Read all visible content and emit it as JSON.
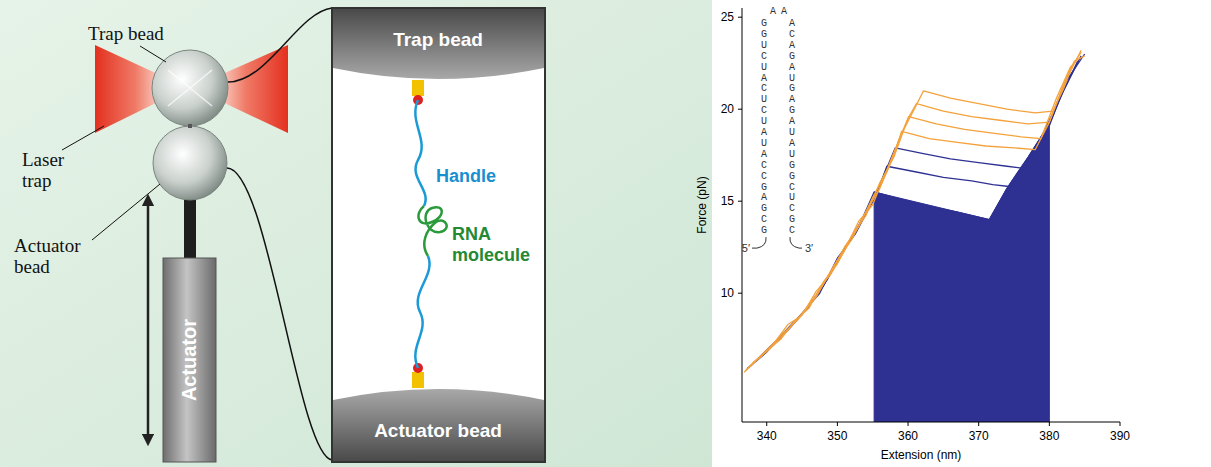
{
  "diagram": {
    "labels": {
      "trap_bead": "Trap bead",
      "laser_trap": "Laser trap",
      "actuator_bead": "Actuator bead",
      "actuator": "Actuator"
    },
    "inset": {
      "top_bead": "Trap bead",
      "bottom_bead": "Actuator bead",
      "handle": "Handle",
      "rna": "RNA molecule"
    }
  },
  "chart_data": {
    "type": "line",
    "x_label": "Extension (nm)",
    "y_label": "Force (pN)",
    "xlim": [
      336.5,
      390
    ],
    "xticks": [
      340,
      350,
      360,
      370,
      380,
      390
    ],
    "ylim": [
      3,
      25.5
    ],
    "yticks": [
      10,
      15,
      20,
      25
    ],
    "grid": false,
    "series": [
      {
        "type": "area",
        "color": "#2e3192",
        "x": [
          355.2,
          355.2,
          371.5,
          374,
          377,
          380,
          380
        ],
        "values": [
          3,
          15.5,
          14.0,
          15.7,
          17.4,
          19.2,
          3
        ]
      },
      {
        "color": "#2e3192",
        "x": [
          337.6,
          340.5,
          343,
          345.5,
          348,
          350.5,
          353,
          355.2,
          359,
          363,
          367,
          371.5,
          374,
          377,
          380,
          382,
          384.5
        ],
        "values": [
          6.0,
          7.1,
          8.0,
          9.1,
          10.4,
          12.1,
          13.6,
          15.5,
          15.1,
          14.7,
          14.4,
          14.0,
          15.7,
          17.4,
          19.2,
          21.0,
          22.9
        ]
      },
      {
        "color": "#2e3192",
        "x": [
          338.5,
          341,
          343.5,
          346,
          348.5,
          351,
          353.5,
          355.5,
          357,
          361,
          365,
          369,
          372,
          374.3,
          376.5,
          379,
          381.5,
          384
        ],
        "values": [
          6.3,
          7.2,
          8.2,
          9.3,
          10.7,
          12.4,
          14.0,
          15.3,
          16.9,
          16.6,
          16.3,
          16.1,
          15.9,
          15.8,
          16.9,
          18.6,
          20.6,
          22.6
        ]
      },
      {
        "color": "#2e3192",
        "x": [
          337.2,
          340,
          342.5,
          345,
          347.5,
          350,
          352.5,
          355,
          357,
          358.2,
          362,
          366,
          370,
          374,
          376.1,
          378,
          380,
          382.5,
          385
        ],
        "values": [
          5.9,
          6.8,
          7.9,
          8.9,
          10.0,
          11.9,
          13.2,
          15.0,
          16.8,
          17.9,
          17.6,
          17.3,
          17.1,
          16.9,
          16.8,
          17.7,
          19.1,
          21.6,
          23.0
        ]
      },
      {
        "color": "#f4a23c",
        "x": [
          336.8,
          339.5,
          342,
          344.5,
          347,
          349.5,
          352,
          354,
          356,
          358,
          359.1,
          363,
          367,
          371,
          375,
          378,
          380,
          382,
          384.5
        ],
        "values": [
          5.7,
          6.7,
          7.7,
          8.6,
          9.8,
          11.5,
          12.9,
          14.4,
          15.7,
          17.5,
          18.8,
          18.4,
          18.2,
          18.0,
          17.9,
          17.8,
          19.3,
          21.3,
          23.2
        ]
      },
      {
        "color": "#f4a23c",
        "x": [
          338,
          340.5,
          343,
          345,
          347,
          349,
          351,
          353,
          355,
          357,
          359,
          360.1,
          364,
          368,
          372,
          376,
          378.8,
          381,
          383,
          384
        ],
        "values": [
          6.2,
          7.0,
          8.3,
          8.8,
          10.1,
          11.0,
          12.3,
          13.9,
          14.8,
          16.7,
          18.6,
          19.6,
          19.2,
          18.9,
          18.7,
          18.5,
          18.4,
          20.6,
          22.3,
          22.7
        ]
      },
      {
        "color": "#f4a23c",
        "x": [
          337.5,
          340,
          342,
          344,
          346,
          348,
          350,
          352,
          354,
          356,
          358,
          360,
          361.2,
          365,
          369,
          373,
          377,
          380,
          381.5,
          383,
          384.5
        ],
        "values": [
          6.0,
          6.9,
          7.5,
          8.5,
          9.2,
          10.6,
          11.6,
          13.1,
          14.2,
          16.0,
          17.4,
          19.5,
          20.3,
          19.9,
          19.6,
          19.4,
          19.2,
          19.3,
          20.8,
          22.2,
          23.1
        ]
      },
      {
        "color": "#f4a23c",
        "x": [
          337,
          339,
          341,
          343,
          345,
          347,
          349,
          351,
          353,
          355,
          357,
          359,
          361,
          362.2,
          366,
          370,
          374,
          378,
          380.5,
          382,
          383.5,
          385
        ],
        "values": [
          5.8,
          6.5,
          7.2,
          8.0,
          8.9,
          9.9,
          11.1,
          12.5,
          13.6,
          15.2,
          16.6,
          18.6,
          20.1,
          21.0,
          20.6,
          20.3,
          20.0,
          19.8,
          19.9,
          21.1,
          22.6,
          22.9
        ]
      }
    ],
    "annotations": {
      "loop": [
        "A",
        "A"
      ],
      "left": [
        "G",
        "G",
        "U",
        "C",
        "U",
        "A",
        "C",
        "U",
        "C",
        "U",
        "A",
        "U",
        "A",
        "C",
        "C",
        "G",
        "A",
        "G",
        "C",
        "G"
      ],
      "right": [
        "A",
        "C",
        "A",
        "G",
        "A",
        "U",
        "G",
        "A",
        "G",
        "A",
        "U",
        "A",
        "U",
        "G",
        "G",
        "C",
        "U",
        "C",
        "G",
        "C"
      ],
      "five_prime": "5′",
      "three_prime": "3′"
    }
  }
}
